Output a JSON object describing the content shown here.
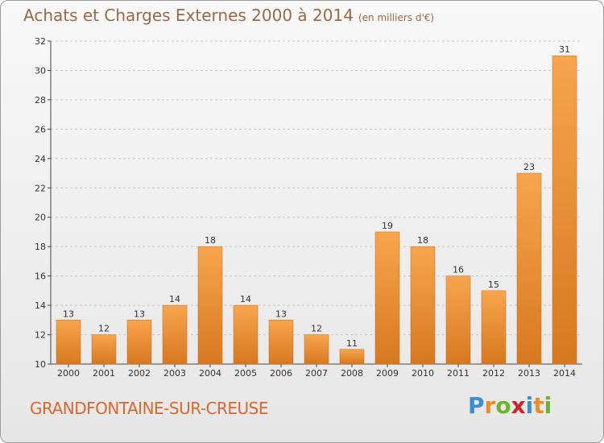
{
  "header": {
    "title": "Achats et Charges Externes 2000 à 2014",
    "unit": "(en milliers d'€)"
  },
  "footer": {
    "commune": "GRANDFONTAINE-SUR-CREUSE",
    "logo": [
      "P",
      "r",
      "o",
      "x",
      "i",
      "t",
      "i"
    ],
    "logo_colors": [
      "#3a8fd0",
      "#f08a24",
      "#6bb52e",
      "#d2232a",
      "#3a8fd0",
      "#f08a24",
      "#6bb52e"
    ]
  },
  "chart_data": {
    "type": "bar",
    "title": "Achats et Charges Externes 2000 à 2014",
    "subtitle": "(en milliers d'€)",
    "categories": [
      "2000",
      "2001",
      "2002",
      "2003",
      "2004",
      "2005",
      "2006",
      "2007",
      "2008",
      "2009",
      "2010",
      "2011",
      "2012",
      "2013",
      "2014"
    ],
    "values": [
      13,
      12,
      13,
      14,
      18,
      14,
      13,
      12,
      11,
      19,
      18,
      16,
      15,
      23,
      31
    ],
    "ylim": [
      10,
      32
    ],
    "yticks": [
      10,
      12,
      14,
      16,
      18,
      20,
      22,
      24,
      26,
      28,
      30,
      32
    ],
    "grid": true,
    "bar_color_light": "#f6a54e",
    "bar_color_dark": "#d7781f"
  }
}
